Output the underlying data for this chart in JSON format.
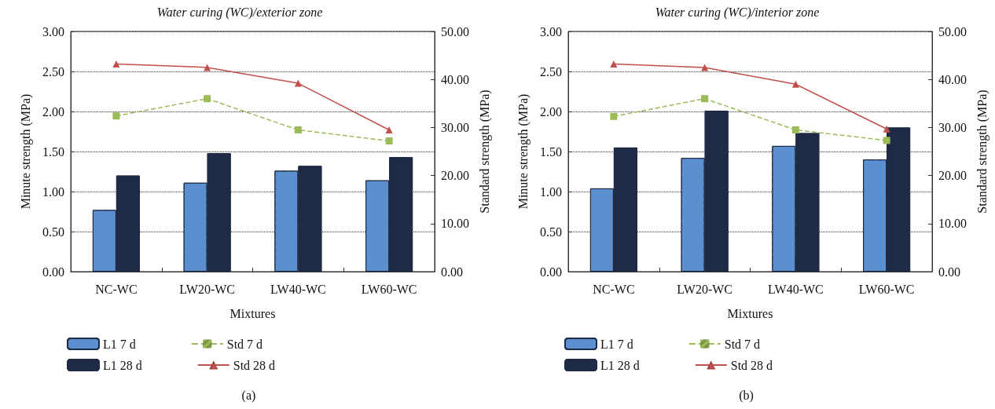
{
  "chart_data": [
    {
      "type": "bar",
      "title": "Water curing (WC)/exterior zone",
      "xlabel": "Mixtures",
      "ylabel": "Minute strength (MPa)",
      "y2label": "Standard strength (MPa)",
      "categories": [
        "NC-WC",
        "LW20-WC",
        "LW40-WC",
        "LW60-WC"
      ],
      "series": [
        {
          "name": "L1 7 d",
          "color": "#5b8fd0",
          "values": [
            0.77,
            1.11,
            1.26,
            1.14
          ]
        },
        {
          "name": "L1 28 d",
          "color": "#1f2a44",
          "values": [
            1.2,
            1.48,
            1.32,
            1.43
          ]
        },
        {
          "name": "Std 7 d",
          "type": "line",
          "axis": "y2",
          "color": "#9bbb59",
          "marker": "square",
          "line_style": "dashed",
          "values": [
            32.4,
            36.0,
            29.5,
            27.2
          ]
        },
        {
          "name": "Std 28 d",
          "type": "line",
          "axis": "y2",
          "color": "#c0504d",
          "marker": "triangle",
          "line_style": "solid",
          "values": [
            43.2,
            42.5,
            39.2,
            29.5
          ]
        }
      ],
      "ylim": [
        0,
        3
      ],
      "yticks": [
        {
          "value": 0,
          "label": "0.00"
        },
        {
          "value": 0.5,
          "label": "0.50"
        },
        {
          "value": 1,
          "label": "1.00"
        },
        {
          "value": 1.5,
          "label": "1.50"
        },
        {
          "value": 2,
          "label": "2.00"
        },
        {
          "value": 2.5,
          "label": "2.50"
        },
        {
          "value": 3,
          "label": "3.00"
        }
      ],
      "y2lim": [
        0,
        50
      ],
      "y2ticks": [
        {
          "value": 0,
          "label": "0.00"
        },
        {
          "value": 10,
          "label": "10.00"
        },
        {
          "value": 20,
          "label": "20.00"
        },
        {
          "value": 30,
          "label": "30.00"
        },
        {
          "value": 40,
          "label": "40.00"
        },
        {
          "value": 50,
          "label": "50.00"
        }
      ],
      "grid": "y",
      "legend": "bottom left",
      "annotations": [
        "(a)"
      ]
    },
    {
      "type": "bar",
      "title": "Water curing (WC)/interior zone",
      "xlabel": "Mixtures",
      "ylabel": "Minute strength (MPa)",
      "y2label": "Standard strength (MPa)",
      "categories": [
        "NC-WC",
        "LW20-WC",
        "LW40-WC",
        "LW60-WC"
      ],
      "series": [
        {
          "name": "L1 7 d",
          "color": "#5b8fd0",
          "values": [
            1.04,
            1.42,
            1.57,
            1.4
          ]
        },
        {
          "name": "L1 28 d",
          "color": "#1f2a44",
          "values": [
            1.55,
            2.01,
            1.73,
            1.8
          ]
        },
        {
          "name": "Std 7 d",
          "type": "line",
          "axis": "y2",
          "color": "#9bbb59",
          "marker": "square",
          "line_style": "dashed",
          "values": [
            32.3,
            36.0,
            29.5,
            27.3
          ]
        },
        {
          "name": "Std 28 d",
          "type": "line",
          "axis": "y2",
          "color": "#c0504d",
          "marker": "triangle",
          "line_style": "solid",
          "values": [
            43.2,
            42.5,
            39.0,
            29.7
          ]
        }
      ],
      "ylim": [
        0,
        3
      ],
      "yticks": [
        {
          "value": 0,
          "label": "0.00"
        },
        {
          "value": 0.5,
          "label": "0.50"
        },
        {
          "value": 1,
          "label": "1.00"
        },
        {
          "value": 1.5,
          "label": "1.50"
        },
        {
          "value": 2,
          "label": "2.00"
        },
        {
          "value": 2.5,
          "label": "2.50"
        },
        {
          "value": 3,
          "label": "3.00"
        }
      ],
      "y2lim": [
        0,
        50
      ],
      "y2ticks": [
        {
          "value": 0,
          "label": "0.00"
        },
        {
          "value": 10,
          "label": "10.00"
        },
        {
          "value": 20,
          "label": "20.00"
        },
        {
          "value": 30,
          "label": "30.00"
        },
        {
          "value": 40,
          "label": "40.00"
        },
        {
          "value": 50,
          "label": "50.00"
        }
      ],
      "grid": "y",
      "legend": "bottom left",
      "annotations": [
        "(b)"
      ]
    }
  ]
}
